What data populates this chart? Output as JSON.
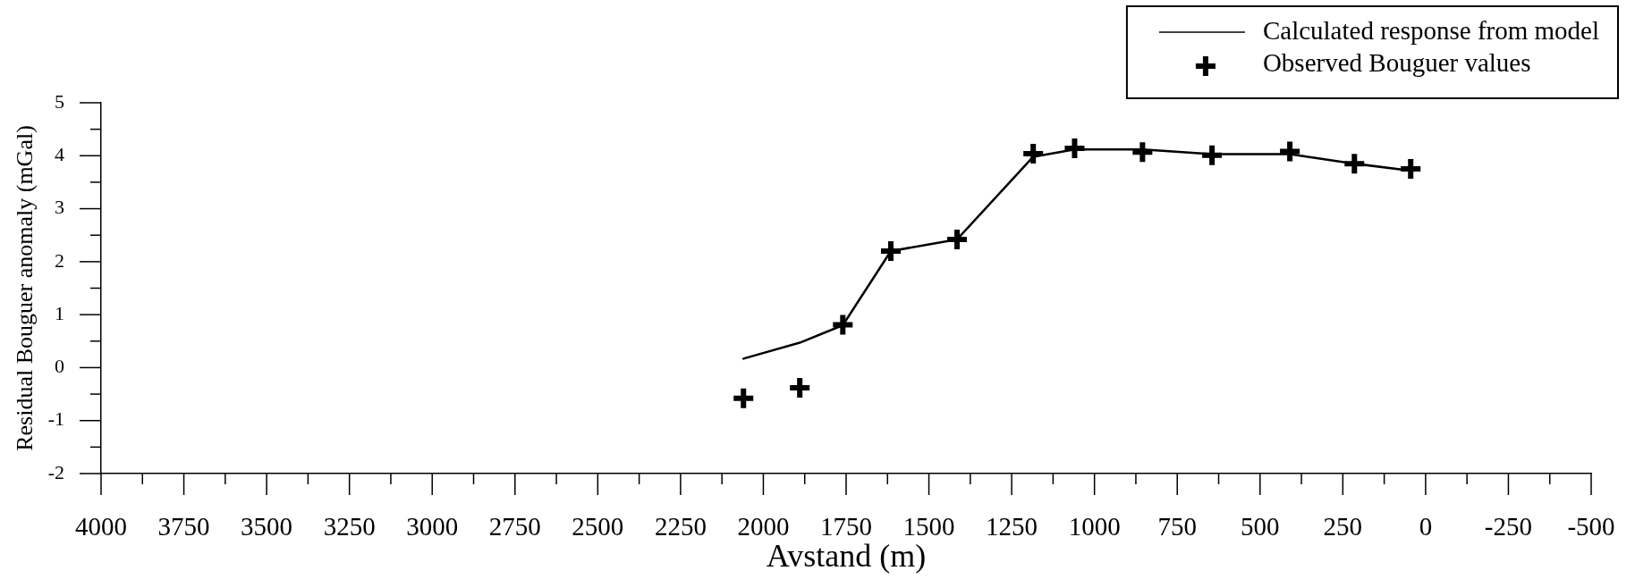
{
  "chart_data": {
    "type": "line",
    "xlabel": "Avstand (m)",
    "ylabel": "Residual Bouguer anomaly (mGal)",
    "x": [
      2060,
      1890,
      1760,
      1615,
      1415,
      1185,
      1060,
      855,
      645,
      410,
      215,
      45
    ],
    "series": [
      {
        "name": "Calculated response from model",
        "type": "line",
        "color": "#000000",
        "marker": "none",
        "values": [
          0.17,
          0.47,
          0.8,
          2.2,
          2.42,
          3.98,
          4.12,
          4.12,
          4.03,
          4.03,
          3.85,
          3.72
        ]
      },
      {
        "name": "Observed Bouguer values",
        "type": "scatter",
        "color": "#000000",
        "marker": "cross",
        "values": [
          -0.58,
          -0.38,
          0.81,
          2.2,
          2.42,
          4.04,
          4.14,
          4.07,
          4.01,
          4.08,
          3.85,
          3.75
        ]
      }
    ],
    "xlim": [
      4000,
      -500
    ],
    "ylim": [
      -2,
      5
    ],
    "xticks": [
      4000,
      {
        "value": 3875,
        "label": null
      },
      3750,
      {
        "value": 3625,
        "label": null
      },
      3500,
      {
        "value": 3375,
        "label": null
      },
      3250,
      {
        "value": 3125,
        "label": null
      },
      3000,
      {
        "value": 2875,
        "label": null
      },
      2750,
      {
        "value": 2625,
        "label": null
      },
      2500,
      {
        "value": 2375,
        "label": null
      },
      2250,
      {
        "value": 2125,
        "label": null
      },
      2000,
      {
        "value": 1875,
        "label": null
      },
      1750,
      {
        "value": 1625,
        "label": null
      },
      1500,
      {
        "value": 1375,
        "label": null
      },
      1250,
      {
        "value": 1125,
        "label": null
      },
      1000,
      {
        "value": 875,
        "label": null
      },
      750,
      {
        "value": 625,
        "label": null
      },
      500,
      {
        "value": 375,
        "label": null
      },
      250,
      {
        "value": 125,
        "label": null
      },
      0,
      {
        "value": -125,
        "label": null
      },
      -250,
      {
        "value": -375,
        "label": null
      },
      -500
    ],
    "yticks": [
      -2,
      {
        "value": -1.5,
        "label": null
      },
      -1,
      {
        "value": -0.5,
        "label": null
      },
      0,
      {
        "value": 0.5,
        "label": null
      },
      1,
      {
        "value": 1.5,
        "label": null
      },
      2,
      {
        "value": 2.5,
        "label": null
      },
      3,
      {
        "value": 3.5,
        "label": null
      },
      4,
      {
        "value": 4.5,
        "label": null
      },
      5
    ],
    "legend": "top right"
  }
}
